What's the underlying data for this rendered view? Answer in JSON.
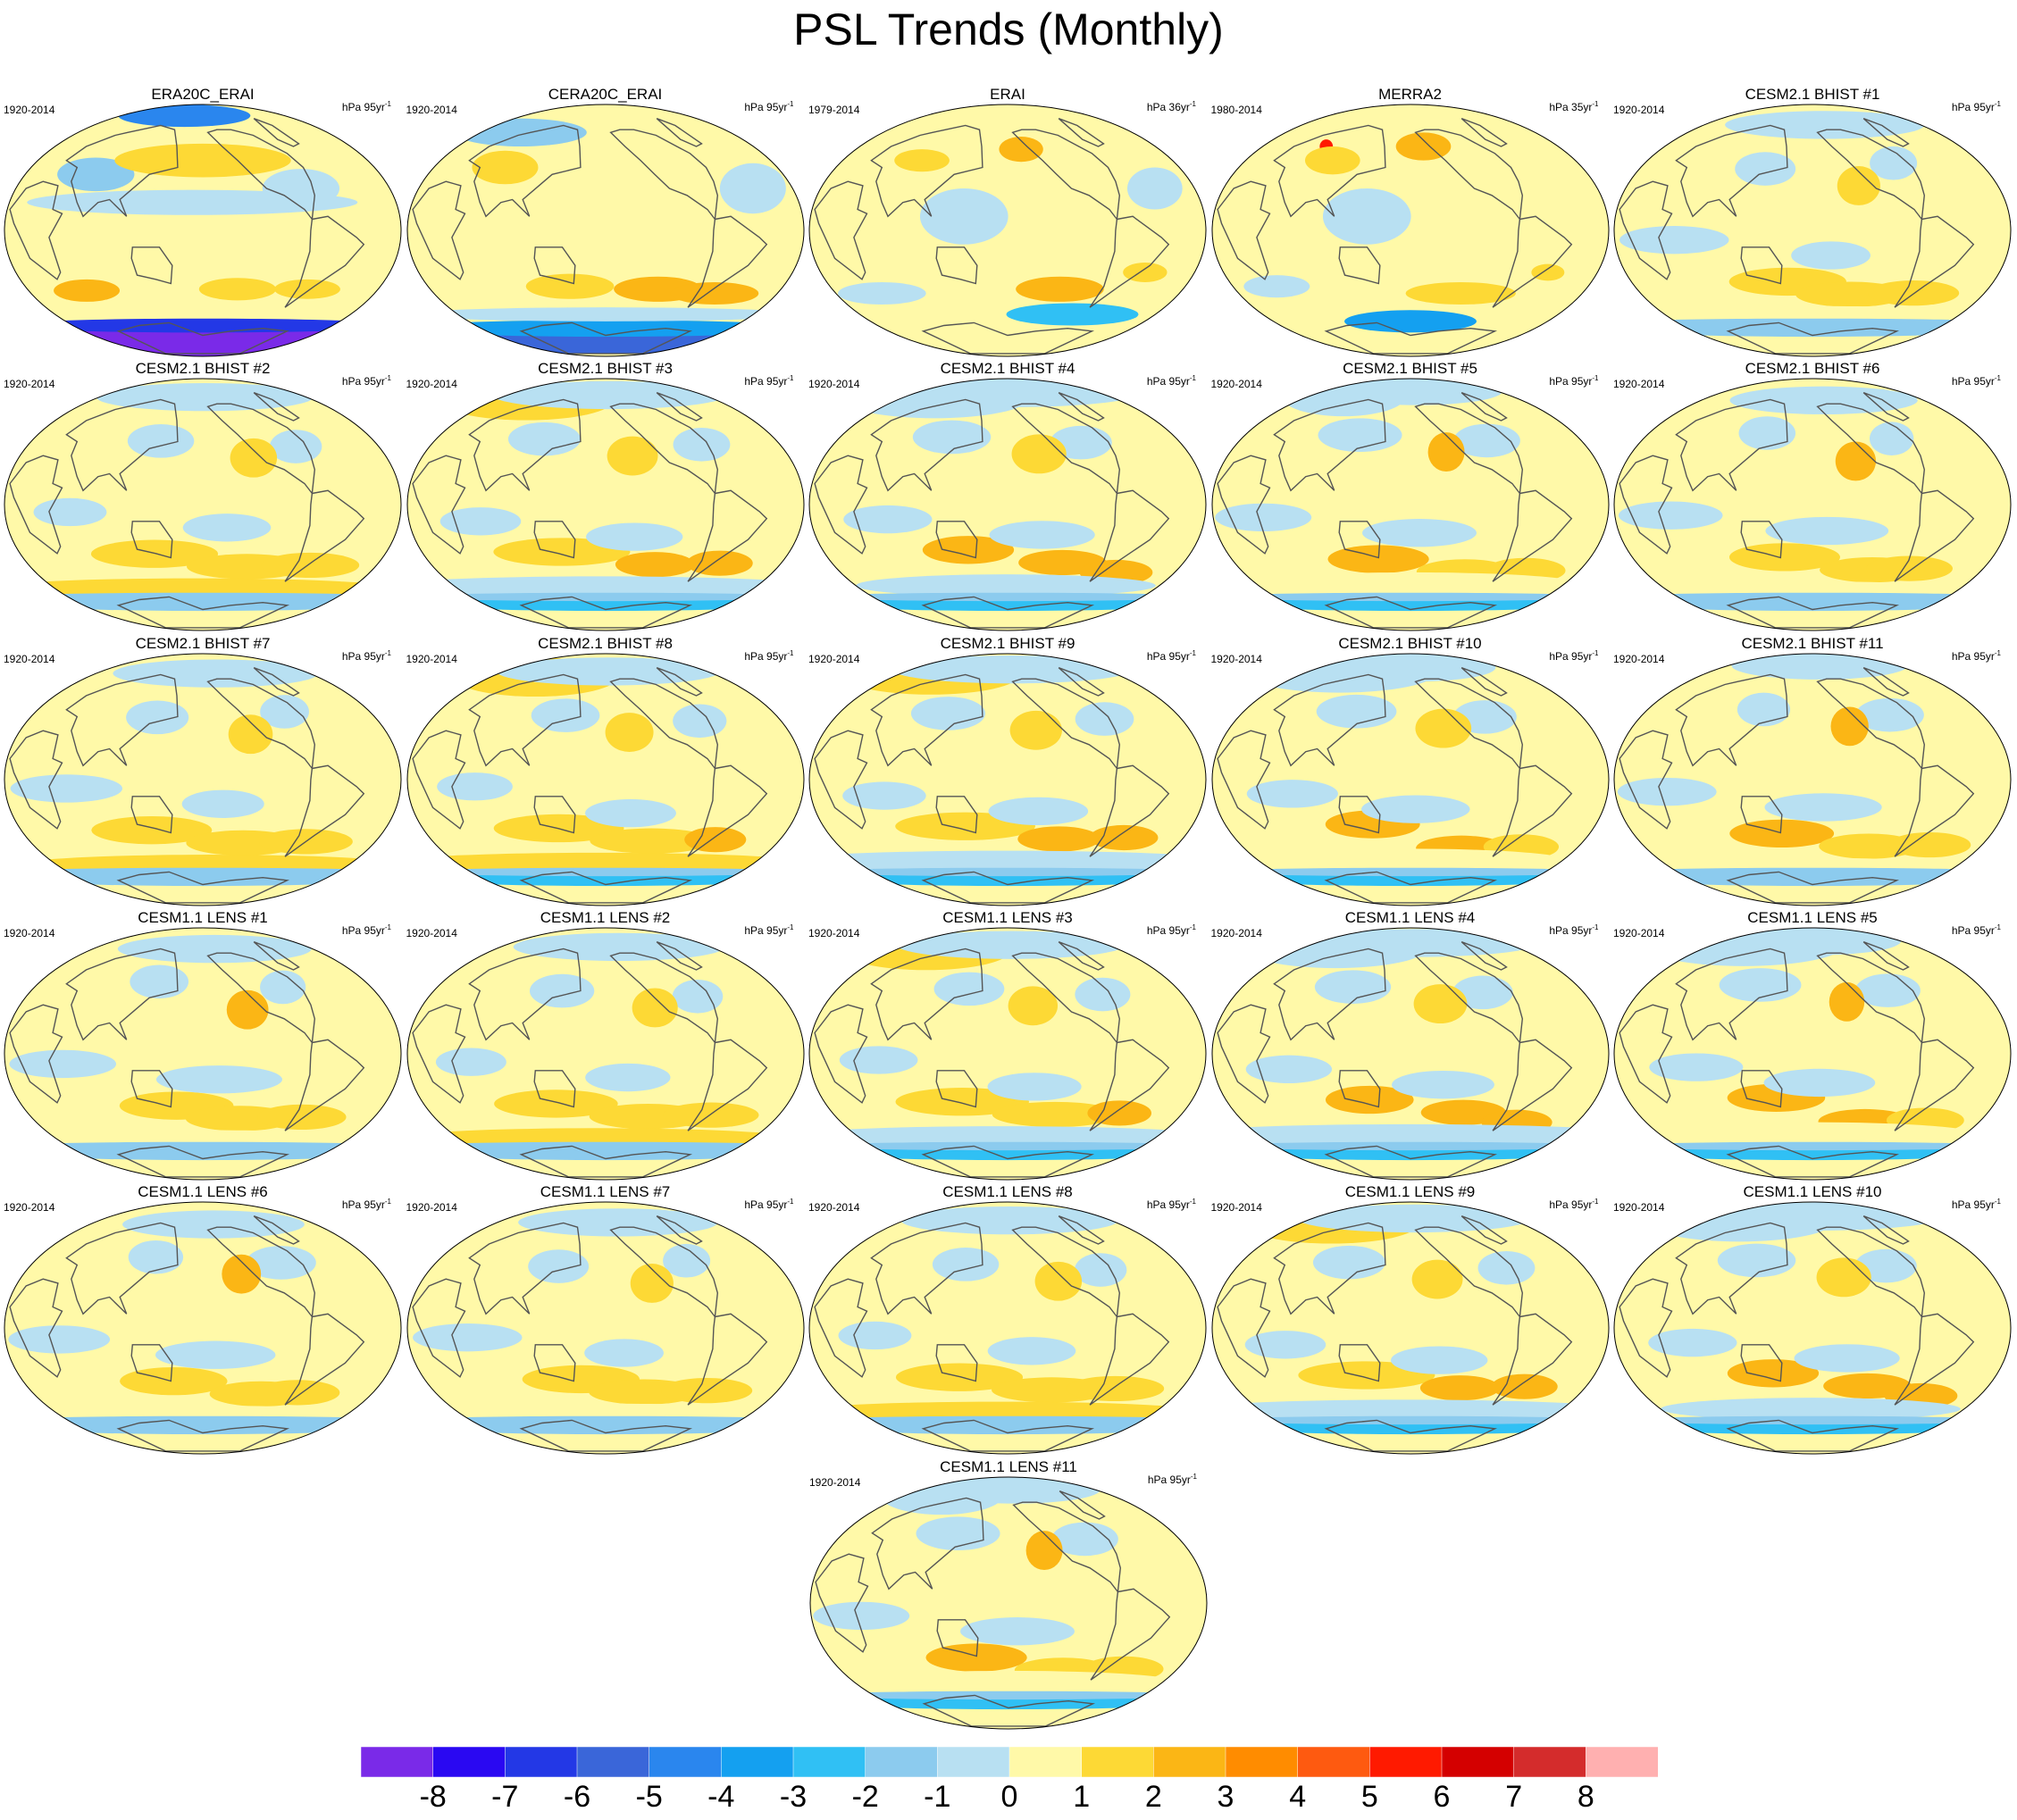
{
  "title": "PSL Trends (Monthly)",
  "panels": [
    {
      "title": "ERA20C_ERAI",
      "period": "1920-2014",
      "units": "hPa 95yr",
      "units_exp": "-1",
      "pattern": "era20c"
    },
    {
      "title": "CERA20C_ERAI",
      "period": "1920-2014",
      "units": "hPa 95yr",
      "units_exp": "-1",
      "pattern": "cera20c"
    },
    {
      "title": "ERAI",
      "period": "1979-2014",
      "units": "hPa 36yr",
      "units_exp": "-1",
      "pattern": "erai"
    },
    {
      "title": "MERRA2",
      "period": "1980-2014",
      "units": "hPa 35yr",
      "units_exp": "-1",
      "pattern": "merra2"
    },
    {
      "title": "CESM2.1 BHIST #1",
      "period": "1920-2014",
      "units": "hPa 95yr",
      "units_exp": "-1",
      "pattern": "model"
    },
    {
      "title": "CESM2.1 BHIST #2",
      "period": "1920-2014",
      "units": "hPa 95yr",
      "units_exp": "-1",
      "pattern": "model"
    },
    {
      "title": "CESM2.1 BHIST #3",
      "period": "1920-2014",
      "units": "hPa 95yr",
      "units_exp": "-1",
      "pattern": "model"
    },
    {
      "title": "CESM2.1 BHIST #4",
      "period": "1920-2014",
      "units": "hPa 95yr",
      "units_exp": "-1",
      "pattern": "model"
    },
    {
      "title": "CESM2.1 BHIST #5",
      "period": "1920-2014",
      "units": "hPa 95yr",
      "units_exp": "-1",
      "pattern": "model"
    },
    {
      "title": "CESM2.1 BHIST #6",
      "period": "1920-2014",
      "units": "hPa 95yr",
      "units_exp": "-1",
      "pattern": "model"
    },
    {
      "title": "CESM2.1 BHIST #7",
      "period": "1920-2014",
      "units": "hPa 95yr",
      "units_exp": "-1",
      "pattern": "model"
    },
    {
      "title": "CESM2.1 BHIST #8",
      "period": "1920-2014",
      "units": "hPa 95yr",
      "units_exp": "-1",
      "pattern": "model"
    },
    {
      "title": "CESM2.1 BHIST #9",
      "period": "1920-2014",
      "units": "hPa 95yr",
      "units_exp": "-1",
      "pattern": "model"
    },
    {
      "title": "CESM2.1 BHIST #10",
      "period": "1920-2014",
      "units": "hPa 95yr",
      "units_exp": "-1",
      "pattern": "model"
    },
    {
      "title": "CESM2.1 BHIST #11",
      "period": "1920-2014",
      "units": "hPa 95yr",
      "units_exp": "-1",
      "pattern": "model"
    },
    {
      "title": "CESM1.1 LENS #1",
      "period": "1920-2014",
      "units": "hPa 95yr",
      "units_exp": "-1",
      "pattern": "model"
    },
    {
      "title": "CESM1.1 LENS #2",
      "period": "1920-2014",
      "units": "hPa 95yr",
      "units_exp": "-1",
      "pattern": "model"
    },
    {
      "title": "CESM1.1 LENS #3",
      "period": "1920-2014",
      "units": "hPa 95yr",
      "units_exp": "-1",
      "pattern": "model"
    },
    {
      "title": "CESM1.1 LENS #4",
      "period": "1920-2014",
      "units": "hPa 95yr",
      "units_exp": "-1",
      "pattern": "model"
    },
    {
      "title": "CESM1.1 LENS #5",
      "period": "1920-2014",
      "units": "hPa 95yr",
      "units_exp": "-1",
      "pattern": "model"
    },
    {
      "title": "CESM1.1 LENS #6",
      "period": "1920-2014",
      "units": "hPa 95yr",
      "units_exp": "-1",
      "pattern": "model"
    },
    {
      "title": "CESM1.1 LENS #7",
      "period": "1920-2014",
      "units": "hPa 95yr",
      "units_exp": "-1",
      "pattern": "model"
    },
    {
      "title": "CESM1.1 LENS #8",
      "period": "1920-2014",
      "units": "hPa 95yr",
      "units_exp": "-1",
      "pattern": "model"
    },
    {
      "title": "CESM1.1 LENS #9",
      "period": "1920-2014",
      "units": "hPa 95yr",
      "units_exp": "-1",
      "pattern": "model"
    },
    {
      "title": "CESM1.1 LENS #10",
      "period": "1920-2014",
      "units": "hPa 95yr",
      "units_exp": "-1",
      "pattern": "model"
    },
    {
      "title": "CESM1.1 LENS #11",
      "period": "1920-2014",
      "units": "hPa 95yr",
      "units_exp": "-1",
      "pattern": "model"
    }
  ],
  "colorbar": {
    "tick_labels": [
      "-8",
      "-7",
      "-6",
      "-5",
      "-4",
      "-3",
      "-2",
      "-1",
      "0",
      "1",
      "2",
      "3",
      "4",
      "5",
      "6",
      "7",
      "8"
    ],
    "colors": [
      "#7a2ae8",
      "#2a08f2",
      "#2338e6",
      "#3a66d9",
      "#2a86ee",
      "#14a0f0",
      "#30c0f4",
      "#8ccbee",
      "#b8e0f2",
      "#fff9a8",
      "#fdd935",
      "#fbb615",
      "#ff8c00",
      "#fe5a10",
      "#ff1a00",
      "#d40000",
      "#d42c2c",
      "#ffb0b0"
    ]
  }
}
